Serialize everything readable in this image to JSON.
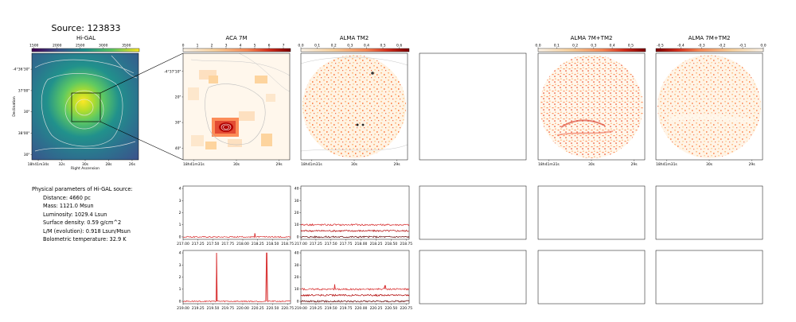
{
  "figure": {
    "source_title": "Source: 123833",
    "panel_titles": {
      "higal": "Hi-GAL",
      "aca": "ACA 7M",
      "tm2": "ALMA TM2",
      "comb1": "ALMA 7M+TM2",
      "comb2": "ALMA 7M+TM2"
    }
  },
  "physical": {
    "heading": "Physical parameters of Hi-GAL source:",
    "lines": [
      "Distance: 4660 pc",
      "Mass: 1121.0 Msun",
      "Luminosity: 1029.4 Lsun",
      "Surface density: 0.59 g/cm^2",
      "L/M (evolution): 0.918 Lsun/Msun",
      "Bolometric temperature: 32.9 K"
    ]
  },
  "colors": {
    "viridis": [
      "#440154",
      "#3b528b",
      "#21918c",
      "#5ec962",
      "#fde725"
    ],
    "orrd": [
      "#fff7ec",
      "#fdd49e",
      "#fc8d59",
      "#d7301f",
      "#7f0000"
    ],
    "spectra": [
      "#d62728",
      "#b00000",
      "#600000"
    ]
  },
  "chart_data": [
    {
      "type": "heatmap",
      "name": "higal",
      "colorbar_ticks": [
        "1500",
        "2000",
        "2500",
        "3000",
        "3500"
      ],
      "x_ticks": [
        "18h41m34s",
        "32s",
        "30s",
        "28s",
        "26s"
      ],
      "y_ticks": [
        "-4°36'30\"",
        "37'00\"",
        "30\"",
        "38'00\"",
        "30\""
      ],
      "xlabel": "Right Ascension",
      "ylabel": "Declination"
    },
    {
      "type": "heatmap",
      "name": "aca",
      "colorbar_ticks": [
        "0",
        "1",
        "2",
        "3",
        "4",
        "5",
        "6",
        "7"
      ],
      "x_ticks": [
        "18h41m31s",
        "30s",
        "29s"
      ],
      "y_ticks": [
        "-4°37'10\"",
        "20\"",
        "30\"",
        "40\""
      ]
    },
    {
      "type": "heatmap",
      "name": "tm2",
      "colorbar_ticks": [
        "0.0",
        "0.1",
        "0.2",
        "0.3",
        "0.4",
        "0.5",
        "0.6"
      ],
      "x_ticks": [
        "18h41m31s",
        "30s",
        "29s"
      ]
    },
    {
      "type": "heatmap",
      "name": "comb1",
      "colorbar_ticks": [
        "0.0",
        "0.1",
        "0.2",
        "0.3",
        "0.4",
        "0.5"
      ],
      "x_ticks": [
        "18h41m31s",
        "30s",
        "29s"
      ]
    },
    {
      "type": "heatmap",
      "name": "comb2",
      "colorbar_ticks": [
        "-0.5",
        "-0.4",
        "-0.3",
        "-0.2",
        "-0.1",
        "0.0"
      ],
      "x_ticks": [
        "18h41m31s",
        "30s",
        "29s"
      ]
    },
    {
      "type": "line",
      "name": "aca-spectrum-low",
      "x_ticks": [
        "217.00",
        "217.25",
        "217.50",
        "217.75",
        "218.00",
        "218.25",
        "218.50",
        "218.75"
      ],
      "xlim": [
        217.0,
        218.8
      ],
      "y_ticks": [
        "0",
        "1",
        "2",
        "3",
        "4"
      ],
      "ylim": [
        -0.2,
        4.2
      ],
      "baselines": [
        0.0
      ],
      "noise": 0.05,
      "peaks": [
        {
          "x": 218.2,
          "y": 0.3
        }
      ]
    },
    {
      "type": "line",
      "name": "tm2-spectrum-low",
      "x_ticks": [
        "217.00",
        "217.25",
        "217.50",
        "217.75",
        "218.00",
        "218.25",
        "218.50",
        "218.75"
      ],
      "xlim": [
        217.0,
        218.8
      ],
      "y_ticks": [
        "0",
        "10",
        "20",
        "30",
        "40"
      ],
      "ylim": [
        -2,
        42
      ],
      "baselines": [
        10,
        5,
        0
      ],
      "noise": 0.7,
      "peaks": []
    },
    {
      "type": "line",
      "name": "aca-spectrum-high",
      "x_ticks": [
        "219.00",
        "219.25",
        "219.50",
        "219.75",
        "220.00",
        "220.25",
        "220.50",
        "220.75"
      ],
      "xlim": [
        219.0,
        220.8
      ],
      "y_ticks": [
        "0",
        "1",
        "2",
        "3",
        "4"
      ],
      "ylim": [
        -0.2,
        4.2
      ],
      "baselines": [
        0.0
      ],
      "noise": 0.05,
      "peaks": [
        {
          "x": 219.56,
          "y": 4.0
        },
        {
          "x": 220.4,
          "y": 4.0
        }
      ]
    },
    {
      "type": "line",
      "name": "tm2-spectrum-high",
      "x_ticks": [
        "219.00",
        "219.25",
        "219.50",
        "219.75",
        "220.00",
        "220.25",
        "220.50",
        "220.75"
      ],
      "xlim": [
        219.0,
        220.8
      ],
      "y_ticks": [
        "0",
        "10",
        "20",
        "30",
        "40"
      ],
      "ylim": [
        -2,
        42
      ],
      "baselines": [
        10,
        5,
        0
      ],
      "noise": 0.7,
      "peaks": [
        {
          "x": 219.56,
          "y": 14
        },
        {
          "x": 220.4,
          "y": 13
        }
      ]
    }
  ]
}
